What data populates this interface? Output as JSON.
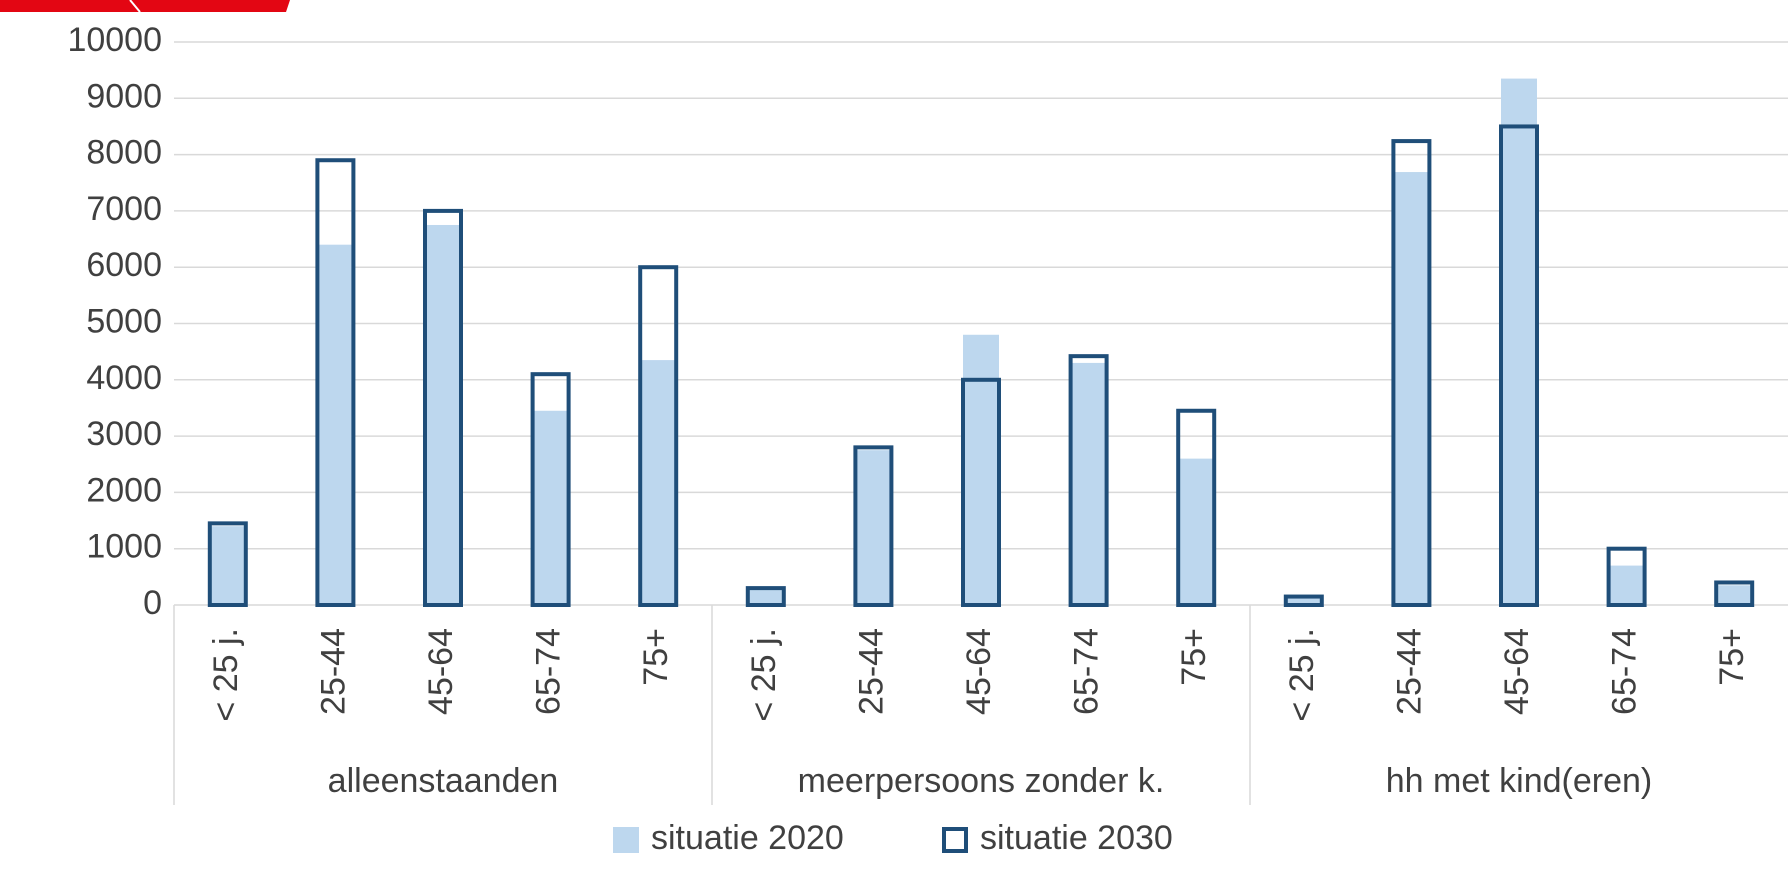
{
  "chart_data": {
    "type": "bar",
    "groups": [
      {
        "name": "alleenstaanden",
        "categories": [
          "< 25 j.",
          "25-44",
          "45-64",
          "65-74",
          "75+"
        ]
      },
      {
        "name": "meerpersoons zonder k.",
        "categories": [
          "< 25 j.",
          "25-44",
          "45-64",
          "65-74",
          "75+"
        ]
      },
      {
        "name": "hh met kind(eren)",
        "categories": [
          "< 25 j.",
          "25-44",
          "45-64",
          "65-74",
          "75+"
        ]
      }
    ],
    "series": [
      {
        "name": "situatie 2020",
        "color": "#bdd7ee",
        "style": "filled",
        "values": [
          1400,
          6400,
          6750,
          3450,
          4350,
          280,
          2750,
          4800,
          4300,
          2600,
          120,
          7690,
          9350,
          700,
          350
        ]
      },
      {
        "name": "situatie 2030",
        "color": "#1f4e79",
        "style": "outline",
        "values": [
          1450,
          7900,
          7000,
          4100,
          6000,
          300,
          2800,
          4000,
          4420,
          3450,
          150,
          8240,
          8500,
          1000,
          400
        ]
      }
    ],
    "ylim": [
      0,
      10000
    ],
    "yticks": [
      0,
      1000,
      2000,
      3000,
      4000,
      5000,
      6000,
      7000,
      8000,
      9000,
      10000
    ],
    "grid": true,
    "legend": "bottom"
  }
}
